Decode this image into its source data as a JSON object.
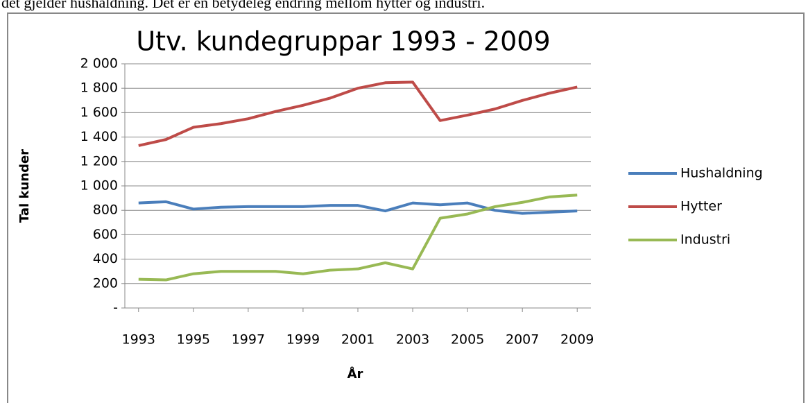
{
  "text": "det gjelder hushaldning. Det er en betydeleg endring mellom hytter og industri.",
  "chart_data": {
    "type": "line",
    "title": "Utv. kundegruppar 1993 - 2009",
    "x_label": "År",
    "y_label": "Tal kunder",
    "x": [
      1993,
      1994,
      1995,
      1996,
      1997,
      1998,
      1999,
      2000,
      2001,
      2002,
      2003,
      2004,
      2005,
      2006,
      2007,
      2008,
      2009
    ],
    "series": [
      {
        "name": "Hushaldning",
        "color": "#4a7ebb",
        "values": [
          860,
          870,
          810,
          825,
          830,
          830,
          830,
          840,
          840,
          795,
          860,
          845,
          860,
          800,
          775,
          785,
          795
        ]
      },
      {
        "name": "Hytter",
        "color": "#be4b48",
        "values": [
          1330,
          1380,
          1480,
          1510,
          1550,
          1610,
          1660,
          1720,
          1800,
          1845,
          1850,
          1535,
          1580,
          1630,
          1700,
          1760,
          1810
        ]
      },
      {
        "name": "Industri",
        "color": "#98b954",
        "values": [
          235,
          230,
          280,
          300,
          300,
          300,
          280,
          310,
          320,
          370,
          320,
          735,
          770,
          830,
          865,
          910,
          925
        ]
      }
    ],
    "xlim": [
      1992.5,
      2009.5
    ],
    "xticks": [
      1993,
      1995,
      1997,
      1999,
      2001,
      2003,
      2005,
      2007,
      2009
    ],
    "ylim": [
      0,
      2000
    ],
    "yticks": [
      {
        "value": 0,
        "label": "-"
      },
      200,
      400,
      600,
      800,
      {
        "value": 1000,
        "label": "1 000"
      },
      {
        "value": 1200,
        "label": "1 200"
      },
      {
        "value": 1400,
        "label": "1 400"
      },
      {
        "value": 1600,
        "label": "1 600"
      },
      {
        "value": 1800,
        "label": "1 800"
      },
      {
        "value": 2000,
        "label": "2 000"
      }
    ],
    "grid": true,
    "legend": "right"
  }
}
